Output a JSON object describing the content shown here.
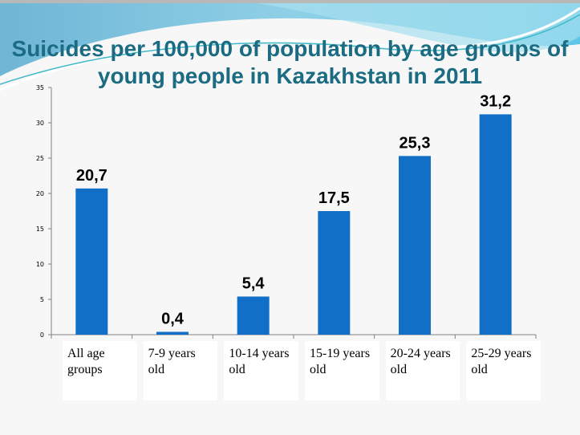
{
  "slide": {
    "title_line1": "Suicides per 100,000 of population by age groups of",
    "title_line2": "young people in Kazakhstan in 2011"
  },
  "colors": {
    "bar": "#116fc7",
    "title": "#1b6b82",
    "axis": "#808080"
  },
  "chart_data": {
    "type": "bar",
    "title": "Suicides per 100,000 of population by age groups of young people in Kazakhstan in 2011",
    "categories": [
      "All age groups",
      "7-9 years old",
      "10-14 years old",
      "15-19 years old",
      "20-24 years old",
      "25-29 years old"
    ],
    "category_lines": [
      [
        "All age",
        "groups"
      ],
      [
        "7-9 years",
        "old"
      ],
      [
        "10-14 years",
        "old"
      ],
      [
        "15-19 years",
        "old"
      ],
      [
        "20-24 years",
        "old"
      ],
      [
        "25-29 years",
        "old"
      ]
    ],
    "values": [
      20.7,
      0.4,
      5.4,
      17.5,
      25.3,
      31.2
    ],
    "data_labels": [
      "20,7",
      "0,4",
      "5,4",
      "17,5",
      "25,3",
      "31,2"
    ],
    "yticks": [
      "0",
      "5",
      "10",
      "15",
      "20",
      "25",
      "30",
      "35"
    ],
    "ylim": [
      0,
      35
    ],
    "xlabel": "",
    "ylabel": "",
    "grid": false,
    "legend": "none"
  }
}
